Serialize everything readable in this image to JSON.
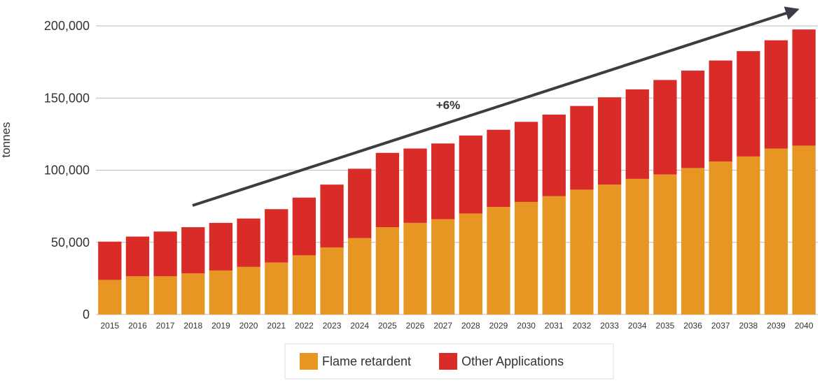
{
  "chart_data": {
    "type": "stacked_bar",
    "y_label": "tonnes",
    "annotation": "+6%",
    "categories": [
      "2015",
      "2016",
      "2017",
      "2018",
      "2019",
      "2020",
      "2021",
      "2022",
      "2023",
      "2024",
      "2025",
      "2026",
      "2027",
      "2028",
      "2029",
      "2030",
      "2031",
      "2032",
      "2033",
      "2034",
      "2035",
      "2036",
      "2037",
      "2038",
      "2039",
      "2040"
    ],
    "series": [
      {
        "name": "Flame retardent",
        "color": "#e89623",
        "values": [
          24000,
          26500,
          26500,
          28500,
          30500,
          33000,
          36000,
          41000,
          46500,
          53000,
          60500,
          63500,
          66000,
          70000,
          74500,
          78000,
          82000,
          86500,
          90000,
          94000,
          97000,
          101500,
          106000,
          109500,
          115000,
          117000
        ]
      },
      {
        "name": "Other Applications",
        "color": "#d92b27",
        "values": [
          26500,
          27500,
          31000,
          32000,
          33000,
          33500,
          37000,
          40000,
          43500,
          48000,
          51500,
          51500,
          52500,
          54000,
          53500,
          55500,
          56500,
          58000,
          60500,
          62000,
          65500,
          67500,
          70000,
          73000,
          75000,
          80500
        ]
      }
    ],
    "ylim": [
      0,
      200000
    ],
    "yticks": [
      0,
      {
        "value": 50000,
        "label": "50,000"
      },
      {
        "value": 100000,
        "label": "100,000"
      },
      {
        "value": 150000,
        "label": "150,000"
      },
      {
        "value": 200000,
        "label": "200,000"
      }
    ],
    "grid": true,
    "legend": "bottom"
  }
}
